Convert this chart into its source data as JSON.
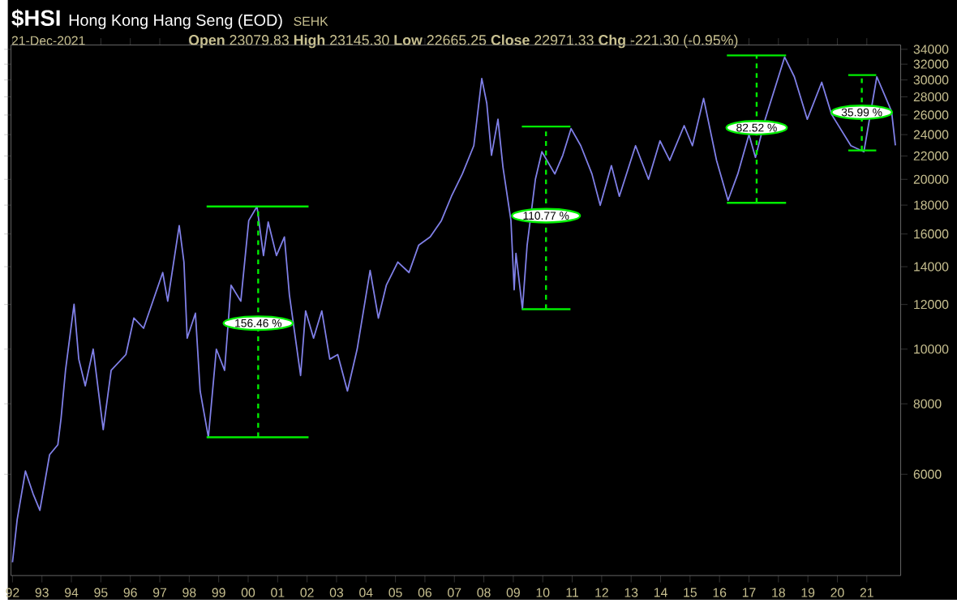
{
  "chart_data": {
    "type": "line",
    "title": "$HSI",
    "subtitle": "Hong Kong Hang Seng (EOD)",
    "annotations": [
      "SEHK",
      "21-Dec-2021",
      "**Open** 23079.83 **High** 23145.30 **Low** 22665.25 **Close** 22971.33 **Chg** -221.30 (-0.95%)",
      {
        "text": "156.46 %",
        "x": 2000.34,
        "y": 11120
      },
      {
        "text": "110.77 %",
        "x": 2010.11,
        "y": 17240
      },
      {
        "text": "82.52 %",
        "x": 2017.26,
        "y": 24690
      },
      {
        "text": "35.99 %",
        "x": 2020.83,
        "y": 26290
      }
    ],
    "log": "y",
    "xlim": [
      1991.95,
      2022.15
    ],
    "ylim": [
      3970,
      34600
    ],
    "xticks": [
      {
        "value": 1992,
        "label": "92"
      },
      {
        "value": 1993,
        "label": "93"
      },
      {
        "value": 1994,
        "label": "94"
      },
      {
        "value": 1995,
        "label": "95"
      },
      {
        "value": 1996,
        "label": "96"
      },
      {
        "value": 1997,
        "label": "97"
      },
      {
        "value": 1998,
        "label": "98"
      },
      {
        "value": 1999,
        "label": "99"
      },
      {
        "value": 2000,
        "label": "00"
      },
      {
        "value": 2001,
        "label": "01"
      },
      {
        "value": 2002,
        "label": "02"
      },
      {
        "value": 2003,
        "label": "03"
      },
      {
        "value": 2004,
        "label": "04"
      },
      {
        "value": 2005,
        "label": "05"
      },
      {
        "value": 2006,
        "label": "06"
      },
      {
        "value": 2007,
        "label": "07"
      },
      {
        "value": 2008,
        "label": "08"
      },
      {
        "value": 2009,
        "label": "09"
      },
      {
        "value": 2010,
        "label": "10"
      },
      {
        "value": 2011,
        "label": "11"
      },
      {
        "value": 2012,
        "label": "12"
      },
      {
        "value": 2013,
        "label": "13"
      },
      {
        "value": 2014,
        "label": "14"
      },
      {
        "value": 2015,
        "label": "15"
      },
      {
        "value": 2016,
        "label": "16"
      },
      {
        "value": 2017,
        "label": "17"
      },
      {
        "value": 2018,
        "label": "18"
      },
      {
        "value": 2019,
        "label": "19"
      },
      {
        "value": 2020,
        "label": "20"
      },
      {
        "value": 2021,
        "label": "21"
      }
    ],
    "yticks": [
      6000,
      8000,
      10000,
      12000,
      14000,
      16000,
      18000,
      20000,
      22000,
      24000,
      26000,
      28000,
      30000,
      32000,
      34000
    ],
    "series": [
      {
        "color": "#8080e8",
        "x": [
          1992.0,
          1992.16,
          1992.44,
          1992.7,
          1992.93,
          1993.26,
          1993.54,
          1993.65,
          1993.8,
          1994.09,
          1994.25,
          1994.47,
          1994.74,
          1995.08,
          1995.35,
          1995.85,
          1996.12,
          1996.45,
          1997.1,
          1997.27,
          1997.66,
          1997.82,
          1997.93,
          1998.21,
          1998.37,
          1998.65,
          1998.92,
          1999.2,
          1999.42,
          1999.75,
          2000.02,
          2000.3,
          2000.52,
          2000.68,
          2000.96,
          2001.23,
          2001.4,
          2001.78,
          2001.95,
          2002.22,
          2002.5,
          2002.77,
          2003.04,
          2003.37,
          2003.7,
          2004.14,
          2004.42,
          2004.69,
          2005.08,
          2005.46,
          2005.79,
          2006.18,
          2006.56,
          2006.9,
          2007.27,
          2007.66,
          2007.93,
          2008.1,
          2008.26,
          2008.48,
          2008.65,
          2008.92,
          2009.03,
          2009.09,
          2009.31,
          2009.47,
          2009.75,
          2009.97,
          2010.41,
          2010.68,
          2010.96,
          2011.29,
          2011.67,
          2011.95,
          2012.33,
          2012.6,
          2013.15,
          2013.59,
          2013.98,
          2014.31,
          2014.8,
          2015.08,
          2015.46,
          2015.9,
          2016.29,
          2016.62,
          2017.0,
          2017.22,
          2017.55,
          2018.21,
          2018.54,
          2018.98,
          2019.47,
          2019.8,
          2020.46,
          2020.9,
          2021.34,
          2021.84,
          2021.97
        ],
        "values": [
          4190,
          4990,
          6080,
          5540,
          5180,
          6500,
          6770,
          7550,
          9170,
          12010,
          9600,
          8610,
          10000,
          7200,
          9170,
          9780,
          11350,
          10890,
          13670,
          12160,
          16560,
          14270,
          10460,
          11580,
          8430,
          6980,
          10000,
          9170,
          12980,
          12160,
          16900,
          17900,
          14650,
          16800,
          14650,
          15810,
          12480,
          8980,
          11690,
          10460,
          11690,
          9600,
          9780,
          8430,
          10000,
          13790,
          11350,
          12980,
          14270,
          13670,
          15290,
          15810,
          16900,
          18660,
          20440,
          22940,
          30180,
          27270,
          22060,
          25550,
          21010,
          16900,
          12740,
          14780,
          11770,
          15290,
          20000,
          22380,
          20440,
          22060,
          24600,
          22940,
          20440,
          17990,
          21150,
          18660,
          22940,
          20000,
          23400,
          21600,
          24900,
          22940,
          27830,
          21600,
          18350,
          20440,
          24000,
          21870,
          25550,
          32940,
          30390,
          25550,
          29720,
          26090,
          22940,
          22380,
          30390,
          26400,
          22970
        ]
      },
      {
        "type": "line",
        "color": "#00ee00",
        "x": [
          1998.59,
          2002.05
        ],
        "values": [
          6980,
          6980
        ]
      },
      {
        "type": "line",
        "color": "#00ee00",
        "x": [
          1998.59,
          2002.05
        ],
        "values": [
          17900,
          17900
        ]
      },
      {
        "type": "line",
        "color": "#00ee00",
        "x": [
          2009.29,
          2010.94
        ],
        "values": [
          11770,
          11770
        ]
      },
      {
        "type": "line",
        "color": "#00ee00",
        "x": [
          2009.29,
          2010.94
        ],
        "values": [
          24807,
          24807
        ]
      },
      {
        "type": "line",
        "color": "#00ee00",
        "x": [
          2016.25,
          2018.26
        ],
        "values": [
          18170,
          18170
        ]
      },
      {
        "type": "line",
        "color": "#00ee00",
        "x": [
          2016.25,
          2018.26
        ],
        "values": [
          33160,
          33160
        ]
      },
      {
        "type": "line",
        "color": "#00ee00",
        "x": [
          2020.37,
          2021.32
        ],
        "values": [
          22500,
          22500
        ]
      },
      {
        "type": "line",
        "color": "#00ee00",
        "x": [
          2020.37,
          2021.32
        ],
        "values": [
          30600,
          30600
        ]
      },
      {
        "type": "line",
        "line_style": "dashed",
        "color": "#00ee00",
        "x": [
          2000.34,
          2000.34
        ],
        "values": [
          6980,
          17900
        ]
      },
      {
        "type": "line",
        "line_style": "dashed",
        "color": "#00ee00",
        "x": [
          2010.11,
          2010.11
        ],
        "values": [
          11770,
          24807
        ]
      },
      {
        "type": "line",
        "line_style": "dashed",
        "color": "#00ee00",
        "x": [
          2017.26,
          2017.26
        ],
        "values": [
          18170,
          33160
        ]
      },
      {
        "type": "line",
        "line_style": "dashed",
        "color": "#00ee00",
        "x": [
          2020.83,
          2020.83
        ],
        "values": [
          22500,
          30600
        ]
      }
    ]
  }
}
